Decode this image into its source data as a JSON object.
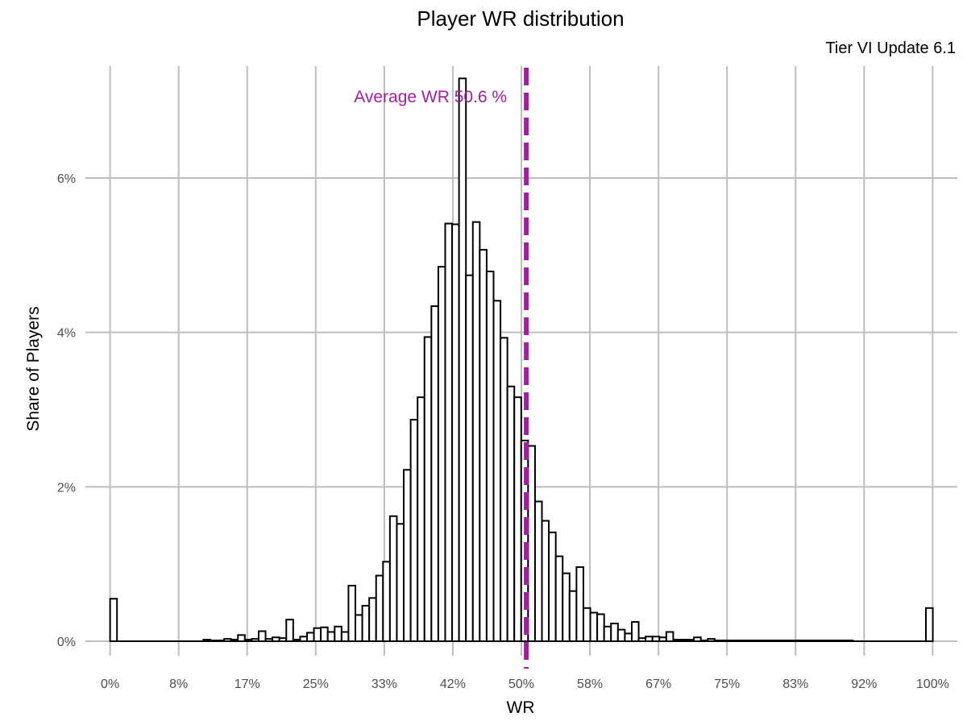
{
  "chart_data": {
    "type": "bar",
    "title": "Player WR distribution",
    "subtitle": "Tier VI Update 6.1",
    "xlabel": "WR",
    "ylabel": "Share of Players",
    "x_ticks": [
      "0%",
      "8%",
      "17%",
      "25%",
      "33%",
      "42%",
      "50%",
      "58%",
      "67%",
      "75%",
      "83%",
      "92%",
      "100%"
    ],
    "y_ticks": [
      "0%",
      "2%",
      "4%",
      "6%"
    ],
    "xlim": [
      -0.03,
      1.03
    ],
    "ylim": [
      0,
      0.0745
    ],
    "bin_width": 0.0084,
    "bins": {
      "left_edges": [
        0.0,
        0.1134,
        0.1218,
        0.1302,
        0.1386,
        0.147,
        0.1554,
        0.1638,
        0.1722,
        0.1806,
        0.189,
        0.1974,
        0.2058,
        0.2142,
        0.2226,
        0.231,
        0.2394,
        0.2478,
        0.2562,
        0.2646,
        0.273,
        0.2814,
        0.2898,
        0.2982,
        0.3066,
        0.315,
        0.3234,
        0.3318,
        0.3402,
        0.3486,
        0.357,
        0.3654,
        0.3738,
        0.3822,
        0.3906,
        0.399,
        0.4074,
        0.4158,
        0.4242,
        0.4326,
        0.441,
        0.4494,
        0.4578,
        0.4662,
        0.4746,
        0.483,
        0.4914,
        0.4998,
        0.5082,
        0.5166,
        0.525,
        0.5334,
        0.5418,
        0.5502,
        0.5586,
        0.567,
        0.5754,
        0.5838,
        0.5922,
        0.6006,
        0.609,
        0.6174,
        0.6258,
        0.6342,
        0.6426,
        0.651,
        0.6594,
        0.6678,
        0.6762,
        0.6846,
        0.693,
        0.7014,
        0.7098,
        0.7182,
        0.7266,
        0.735,
        0.7434,
        0.7518,
        0.7602,
        0.7686,
        0.777,
        0.7854,
        0.7938,
        0.8022,
        0.8106,
        0.819,
        0.8274,
        0.8358,
        0.8442,
        0.8526,
        0.861,
        0.8694,
        0.8778,
        0.8862,
        0.8946,
        0.9918
      ],
      "values": [
        0.0055,
        0.0002,
        0.0001,
        0.0001,
        0.0003,
        0.0002,
        0.0008,
        0.0002,
        0.0003,
        0.0013,
        0.0003,
        0.0005,
        0.0004,
        0.0028,
        0.0002,
        0.0006,
        0.0011,
        0.0017,
        0.0018,
        0.0012,
        0.0019,
        0.0012,
        0.0072,
        0.0034,
        0.0046,
        0.0056,
        0.0085,
        0.0103,
        0.0162,
        0.0152,
        0.0222,
        0.0287,
        0.0316,
        0.0394,
        0.0434,
        0.0485,
        0.0541,
        0.054,
        0.0729,
        0.0474,
        0.0543,
        0.0507,
        0.0479,
        0.0441,
        0.0393,
        0.033,
        0.0316,
        0.026,
        0.0253,
        0.0181,
        0.0156,
        0.0141,
        0.011,
        0.0088,
        0.0065,
        0.0096,
        0.0043,
        0.0037,
        0.0035,
        0.0019,
        0.0023,
        0.0015,
        0.001,
        0.0025,
        0.0004,
        0.0006,
        0.0006,
        0.0005,
        0.0012,
        0.0002,
        0.0002,
        0.0002,
        0.0005,
        0.0001,
        0.0003,
        0.0001,
        0.0001,
        0.0001,
        0.0001,
        0.0001,
        0.0001,
        0.0001,
        0.0001,
        0.0001,
        0.0001,
        0.0001,
        0.0001,
        0.0001,
        0.0001,
        0.0001,
        0.0001,
        0.0001,
        0.0001,
        0.0001,
        0.0001,
        0.0043
      ]
    },
    "reference_line": {
      "x": 0.506,
      "label": "Average WR 50.6 %",
      "color": "#a020a0",
      "style": "dashed"
    },
    "grid": true,
    "legend": "none"
  }
}
